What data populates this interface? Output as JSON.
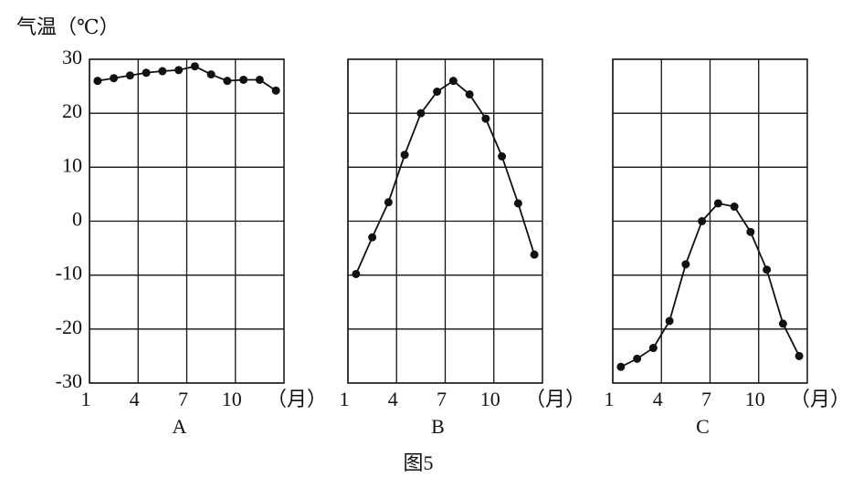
{
  "caption": "图5",
  "chart_data": [
    {
      "type": "line",
      "title": "A",
      "y_label": "气温（℃）",
      "x_label": "（月）",
      "x": [
        1,
        2,
        3,
        4,
        5,
        6,
        7,
        8,
        9,
        10,
        11,
        12
      ],
      "series": [
        {
          "color": "#111111",
          "values": [
            26,
            26.5,
            27,
            27.5,
            27.8,
            28,
            28.7,
            27.2,
            26,
            26.2,
            26.2,
            24.2
          ]
        }
      ],
      "xlim": [
        0.5,
        12.5
      ],
      "xticks": [
        1,
        4,
        7,
        10
      ],
      "ylim": [
        -30,
        30
      ],
      "yticks": [
        30,
        20,
        10,
        0,
        -10,
        -20,
        -30
      ],
      "grid": true,
      "show_yticklabels": true
    },
    {
      "type": "line",
      "title": "B",
      "x_label": "（月）",
      "x": [
        1,
        2,
        3,
        4,
        5,
        6,
        7,
        8,
        9,
        10,
        11,
        12
      ],
      "series": [
        {
          "color": "#111111",
          "values": [
            -9.8,
            -3,
            3.5,
            12.3,
            20,
            24,
            26,
            23.5,
            19,
            12,
            3.3,
            -6.2
          ]
        }
      ],
      "xlim": [
        0.5,
        12.5
      ],
      "xticks": [
        1,
        4,
        7,
        10
      ],
      "ylim": [
        -30,
        30
      ],
      "yticks": [
        30,
        20,
        10,
        0,
        -10,
        -20,
        -30
      ],
      "grid": true,
      "show_yticklabels": false
    },
    {
      "type": "line",
      "title": "C",
      "x_label": "（月）",
      "x": [
        1,
        2,
        3,
        4,
        5,
        6,
        7,
        8,
        9,
        10,
        11,
        12
      ],
      "series": [
        {
          "color": "#111111",
          "values": [
            -27,
            -25.5,
            -23.5,
            -18.5,
            -8,
            0,
            3.3,
            2.7,
            -2,
            -9,
            -19,
            -25
          ]
        }
      ],
      "xlim": [
        0.5,
        12.5
      ],
      "xticks": [
        1,
        4,
        7,
        10
      ],
      "ylim": [
        -30,
        30
      ],
      "yticks": [
        30,
        20,
        10,
        0,
        -10,
        -20,
        -30
      ],
      "grid": true,
      "show_yticklabels": false
    }
  ]
}
